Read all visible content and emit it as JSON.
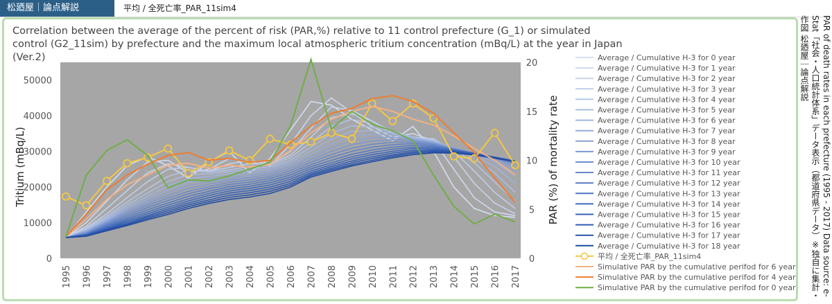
{
  "header": {
    "brand": "松廼屋｜論点解説",
    "breadcrumb": "平均 / 全死亡率_PAR_11sim4"
  },
  "side_note": {
    "line1": "PAR of death rates in each prefecture (1995 - 2017) Data source: e-Stat「社会・人口統計体系」データ表示（都道府県データ）※独自に集計・作図  松廼屋｜論点解説"
  },
  "chart_data": {
    "type": "line",
    "title": "Correlation between the average of the percent of risk (PAR,%)  relative to 11 control prefecture (G_1) or simulated control (G2_11sim)  by prefecture and the maximum local atmospheric tritium concentration (mBq/L) at the year in Japan (Ver.2)",
    "xlabel": "",
    "ylabel": "Tritium (mBq/L)",
    "y2label": "PAR (%) of mortality rate",
    "categories": [
      "1995",
      "1996",
      "1997",
      "1998",
      "1999",
      "2000",
      "2001",
      "2002",
      "2003",
      "2004",
      "2005",
      "2006",
      "2007",
      "2008",
      "2009",
      "2010",
      "2011",
      "2012",
      "2013",
      "2014",
      "2015",
      "2016",
      "2017"
    ],
    "ylim": [
      0,
      55000
    ],
    "yticks": [
      0,
      10000,
      20000,
      30000,
      40000,
      50000
    ],
    "y2lim": [
      0,
      20
    ],
    "y2ticks": [
      0,
      5,
      10,
      15,
      20
    ],
    "grid": false,
    "plot_background": "#a6a6a6",
    "legend_position": "right",
    "tritium_series": [
      {
        "name": "Average / Cumulative H-3 for 0 year",
        "color": "#d6dff0",
        "values": [
          5800,
          13000,
          20000,
          26000,
          28500,
          26000,
          22500,
          27000,
          30000,
          24000,
          28000,
          36000,
          44000,
          43000,
          39000,
          36000,
          33000,
          37000,
          30000,
          20000,
          14000,
          12000,
          11500
        ]
      },
      {
        "name": "Average / Cumulative H-3 for 1 year",
        "color": "#cfd9ee",
        "values": [
          5800,
          10000,
          16000,
          22000,
          27000,
          27500,
          24000,
          25000,
          28000,
          27000,
          26000,
          32000,
          40000,
          45000,
          41000,
          37000,
          34000,
          35000,
          33000,
          25000,
          17000,
          13000,
          12000
        ]
      },
      {
        "name": "Average / Cumulative H-3 for 2 year",
        "color": "#c8d3ec",
        "values": [
          5800,
          9000,
          14000,
          19000,
          24000,
          26500,
          25500,
          24500,
          26500,
          27500,
          26500,
          30000,
          36500,
          42500,
          41500,
          38500,
          35000,
          34000,
          33500,
          28500,
          21000,
          15500,
          12500
        ]
      },
      {
        "name": "Average / Cumulative H-3 for 3 year",
        "color": "#c0cdea",
        "values": [
          5800,
          8500,
          12500,
          17000,
          21500,
          25000,
          25500,
          24500,
          25500,
          26500,
          26500,
          29000,
          34000,
          39500,
          40500,
          38500,
          35500,
          33800,
          33500,
          30000,
          24500,
          18500,
          14000
        ]
      },
      {
        "name": "Average / Cumulative H-3 for 4 year",
        "color": "#b6c5e6",
        "values": [
          5800,
          8200,
          11800,
          15800,
          19500,
          23000,
          24700,
          24200,
          24800,
          25800,
          26200,
          28300,
          32500,
          37000,
          39000,
          37800,
          35700,
          33900,
          33200,
          30600,
          26800,
          21500,
          16000
        ]
      },
      {
        "name": "Average / Cumulative H-3 for 5 year",
        "color": "#abbde3",
        "values": [
          5800,
          8000,
          11300,
          15000,
          18300,
          21500,
          23500,
          23700,
          24300,
          25000,
          25700,
          27600,
          31200,
          35000,
          37200,
          36800,
          35500,
          33900,
          33000,
          30900,
          28000,
          24000,
          18500
        ]
      },
      {
        "name": "Average / Cumulative H-3 for 6 year",
        "color": "#a0b4df",
        "values": [
          5800,
          7800,
          10900,
          14400,
          17400,
          20300,
          22300,
          23000,
          23700,
          24400,
          25200,
          27000,
          30100,
          33400,
          35600,
          35800,
          35100,
          33800,
          32800,
          31000,
          28800,
          25800,
          21000
        ]
      },
      {
        "name": "Average / Cumulative H-3 for 7 year",
        "color": "#95abdb",
        "values": [
          5800,
          7600,
          10600,
          13900,
          16700,
          19300,
          21300,
          22200,
          23100,
          23800,
          24700,
          26400,
          29200,
          32100,
          34200,
          34800,
          34600,
          33600,
          32600,
          31000,
          29200,
          27000,
          23000
        ]
      },
      {
        "name": "Average / Cumulative H-3 for 8 year",
        "color": "#89a1d6",
        "values": [
          5800,
          7400,
          10300,
          13400,
          16000,
          18400,
          20400,
          21500,
          22500,
          23200,
          24100,
          25800,
          28400,
          31000,
          33000,
          33800,
          34000,
          33300,
          32400,
          30900,
          29400,
          27700,
          24500
        ]
      },
      {
        "name": "Average / Cumulative H-3 for 9 year",
        "color": "#7c97d1",
        "values": [
          5800,
          7200,
          10000,
          12900,
          15400,
          17600,
          19600,
          20800,
          21900,
          22600,
          23600,
          25200,
          27700,
          30000,
          31900,
          32900,
          33300,
          33000,
          32200,
          30800,
          29500,
          28100,
          25500
        ]
      },
      {
        "name": "Average / Cumulative H-3 for 10 year",
        "color": "#6e8ccc",
        "values": [
          5800,
          7000,
          9700,
          12400,
          14800,
          16900,
          18800,
          20100,
          21300,
          22000,
          23000,
          24600,
          27000,
          29100,
          30900,
          32000,
          32600,
          32600,
          32000,
          30700,
          29500,
          28300,
          26200
        ]
      },
      {
        "name": "Average / Cumulative H-3 for 11 year",
        "color": "#6183c7",
        "values": [
          5800,
          6900,
          9400,
          11900,
          14200,
          16200,
          18100,
          19500,
          20700,
          21400,
          22400,
          24000,
          26300,
          28300,
          30000,
          31200,
          31900,
          32200,
          31700,
          30600,
          29500,
          28400,
          26700
        ]
      },
      {
        "name": "Average / Cumulative H-3 for 12 year",
        "color": "#557ac3",
        "values": [
          5800,
          6800,
          9100,
          11400,
          13600,
          15500,
          17400,
          18800,
          20100,
          20800,
          21800,
          23400,
          25700,
          27500,
          29200,
          30400,
          31200,
          31700,
          31400,
          30500,
          29500,
          28400,
          27000
        ]
      },
      {
        "name": "Average / Cumulative H-3 for 13 year",
        "color": "#4a72bf",
        "values": [
          5800,
          6700,
          8800,
          11000,
          13000,
          14900,
          16700,
          18200,
          19500,
          20200,
          21200,
          22800,
          25100,
          26800,
          28500,
          29700,
          30600,
          31200,
          31100,
          30400,
          29400,
          28400,
          27200
        ]
      },
      {
        "name": "Average / Cumulative H-3 for 14 year",
        "color": "#4069ba",
        "values": [
          5800,
          6600,
          8500,
          10600,
          12500,
          14300,
          16100,
          17600,
          18900,
          19600,
          20600,
          22200,
          24500,
          26200,
          27900,
          29100,
          30000,
          30800,
          30800,
          30300,
          29400,
          28400,
          27300
        ]
      },
      {
        "name": "Average / Cumulative H-3 for 15 year",
        "color": "#3762b5",
        "values": [
          5800,
          6500,
          8300,
          10200,
          12000,
          13800,
          15500,
          17000,
          18300,
          19000,
          20000,
          21600,
          24000,
          25700,
          27300,
          28500,
          29500,
          30300,
          30500,
          30100,
          29300,
          28400,
          27300
        ]
      },
      {
        "name": "Average / Cumulative H-3 for 16 year",
        "color": "#2f5aaf",
        "values": [
          5800,
          6400,
          8100,
          9800,
          11600,
          13300,
          15000,
          16400,
          17700,
          18400,
          19400,
          21000,
          23600,
          25200,
          26800,
          28000,
          29000,
          29900,
          30200,
          29900,
          29200,
          28300,
          27300
        ]
      },
      {
        "name": "Average / Cumulative H-3 for 17 year",
        "color": "#2852a8",
        "values": [
          5800,
          6300,
          7900,
          9500,
          11200,
          12800,
          14500,
          15900,
          17100,
          17800,
          18800,
          20500,
          23200,
          24800,
          26300,
          27500,
          28600,
          29500,
          29900,
          29700,
          29100,
          28200,
          27200
        ]
      },
      {
        "name": "Average / Cumulative H-3 for 18 year",
        "color": "#214ba0",
        "values": [
          5800,
          6200,
          7700,
          9200,
          10800,
          12300,
          14000,
          15400,
          16500,
          17200,
          18200,
          20000,
          22800,
          24400,
          25900,
          27100,
          28200,
          29100,
          29600,
          29500,
          29000,
          28100,
          27100
        ]
      }
    ],
    "par_series": [
      {
        "name": "平均 / 全死亡率_PAR_11sim4",
        "color": "#f5c842",
        "marker": "circle",
        "values": [
          6.3,
          5.4,
          7.9,
          9.7,
          10.3,
          11.2,
          8.7,
          9.8,
          11.0,
          10.0,
          12.2,
          11.6,
          11.9,
          12.8,
          12.2,
          15.8,
          14.0,
          15.8,
          14.3,
          10.4,
          10.2,
          12.8,
          9.5
        ]
      },
      {
        "name": "Simulative PAR by the cumulative perifod for 6 year",
        "color": "#f4b183",
        "marker": "none",
        "values": [
          2.2,
          4.0,
          6.0,
          7.5,
          8.5,
          9.5,
          9.7,
          9.2,
          9.5,
          9.3,
          9.6,
          11.0,
          12.8,
          14.2,
          15.0,
          15.5,
          15.0,
          14.2,
          13.6,
          12.5,
          11.2,
          10.0,
          8.5
        ]
      },
      {
        "name": "Simulative PAR by the cumulative perifod for 4 year",
        "color": "#ed7d31",
        "marker": "none",
        "values": [
          2.2,
          4.5,
          7.0,
          8.5,
          9.6,
          10.5,
          10.8,
          10.0,
          10.2,
          9.8,
          10.0,
          11.8,
          13.5,
          14.8,
          15.3,
          16.3,
          16.6,
          16.0,
          14.8,
          12.8,
          10.8,
          8.2,
          5.7
        ]
      },
      {
        "name": "Simulative PAR by the cumulative perifod for 0 year",
        "color": "#70ad47",
        "marker": "none",
        "values": [
          2.2,
          8.5,
          11.0,
          12.1,
          10.5,
          7.2,
          8.0,
          7.9,
          8.4,
          9.1,
          9.8,
          13.5,
          20.3,
          13.2,
          15.0,
          13.7,
          13.0,
          12.0,
          8.5,
          5.3,
          3.5,
          4.5,
          3.7
        ]
      }
    ]
  }
}
